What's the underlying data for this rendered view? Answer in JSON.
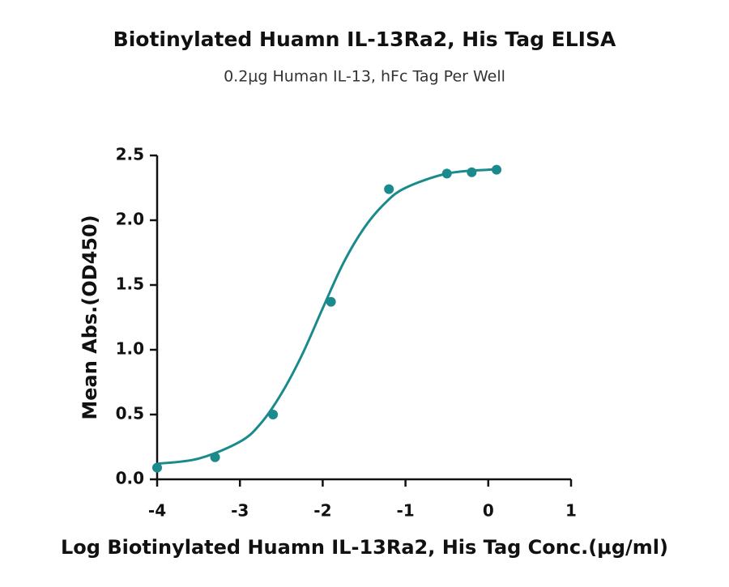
{
  "chart_data": {
    "type": "scatter",
    "title": "Biotinylated Huamn IL-13Ra2, His Tag ELISA",
    "subtitle": "0.2μg Human IL-13, hFc Tag Per Well",
    "x_label": "Log Biotinylated Huamn IL-13Ra2, His Tag Conc.(μg/ml)",
    "y_label": "Mean Abs.(OD450)",
    "xlim": [
      -4,
      1
    ],
    "ylim": [
      0,
      2.5
    ],
    "xticks": [
      -4,
      -3,
      -2,
      -1,
      0,
      1
    ],
    "yticks": [
      {
        "value": 0,
        "label": "0.0"
      },
      0.5,
      {
        "value": 1,
        "label": "1.0"
      },
      1.5,
      {
        "value": 2,
        "label": "2.0"
      },
      2.5
    ],
    "series": [
      {
        "color": "#1b8a8c",
        "x": [
          -4,
          -3.3,
          -2.6,
          -1.9,
          -1.2,
          -0.5,
          -0.2,
          0.1
        ],
        "values": [
          0.09,
          0.17,
          0.5,
          1.37,
          2.24,
          2.36,
          2.37,
          2.39
        ]
      },
      {
        "color": "#1b8a8c",
        "x": [
          -4,
          -3.5,
          -3,
          -2.75,
          -2.5,
          -2.25,
          -2,
          -1.75,
          -1.5,
          -1.25,
          -1,
          -0.5,
          0,
          0.1
        ],
        "values": [
          0.12,
          0.16,
          0.29,
          0.43,
          0.66,
          0.96,
          1.32,
          1.67,
          1.94,
          2.13,
          2.25,
          2.36,
          2.39,
          2.39
        ]
      }
    ]
  }
}
